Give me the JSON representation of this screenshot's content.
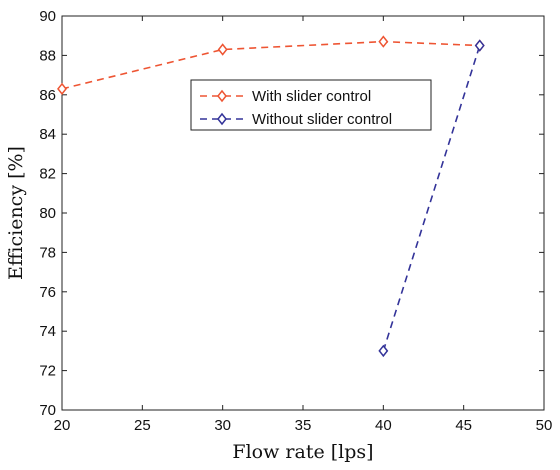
{
  "chart_data": {
    "type": "line",
    "xlabel": "Flow rate [lps]",
    "ylabel": "Efficiency [%]",
    "xlim": [
      20,
      50
    ],
    "ylim": [
      70,
      90
    ],
    "xticks": [
      20,
      25,
      30,
      35,
      40,
      45,
      50
    ],
    "yticks": [
      70,
      72,
      74,
      76,
      78,
      80,
      82,
      84,
      86,
      88,
      90
    ],
    "grid": false,
    "legend_position": "top-right",
    "series": [
      {
        "name": "With slider control",
        "color": "#ee5533",
        "marker": "diamond",
        "line_style": "dashed",
        "x": [
          20,
          30,
          40,
          46
        ],
        "y": [
          86.3,
          88.3,
          88.7,
          88.5
        ]
      },
      {
        "name": "Without slider control",
        "color": "#333399",
        "marker": "diamond",
        "line_style": "dashed",
        "x": [
          40,
          46
        ],
        "y": [
          73.0,
          88.5
        ]
      }
    ]
  }
}
